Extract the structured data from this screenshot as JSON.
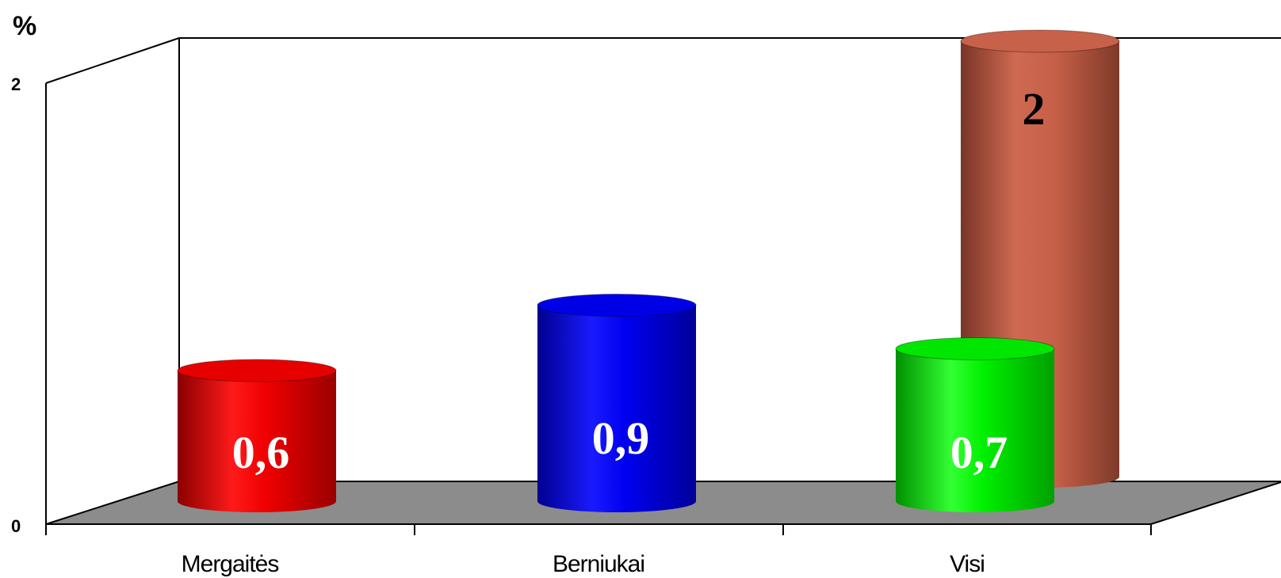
{
  "chart_data": {
    "type": "bar",
    "style": "3d-cylinder",
    "ylabel": "%",
    "ylim": [
      0,
      2
    ],
    "yticks": [
      "0",
      "2"
    ],
    "categories": [
      "Mergaitės",
      "Berniukai",
      "Visi"
    ],
    "series": [
      {
        "color": "#e60000",
        "values": [
          0.6,
          null,
          null
        ],
        "labels": [
          "0,6",
          "",
          ""
        ],
        "label_color": "#ffffff"
      },
      {
        "color": "#0000e6",
        "values": [
          null,
          0.9,
          null
        ],
        "labels": [
          "",
          "0,9",
          ""
        ],
        "label_color": "#ffffff"
      },
      {
        "color": "#00e600",
        "values": [
          null,
          null,
          0.7
        ],
        "labels": [
          "",
          "",
          "0,7"
        ],
        "label_color": "#ffffff"
      },
      {
        "color": "#c8614a",
        "values": [
          null,
          null,
          2
        ],
        "labels": [
          "",
          "",
          "2"
        ],
        "label_color": "#000000"
      }
    ],
    "grid": false,
    "legend": "none",
    "floor_color": "#8c8c8c"
  }
}
